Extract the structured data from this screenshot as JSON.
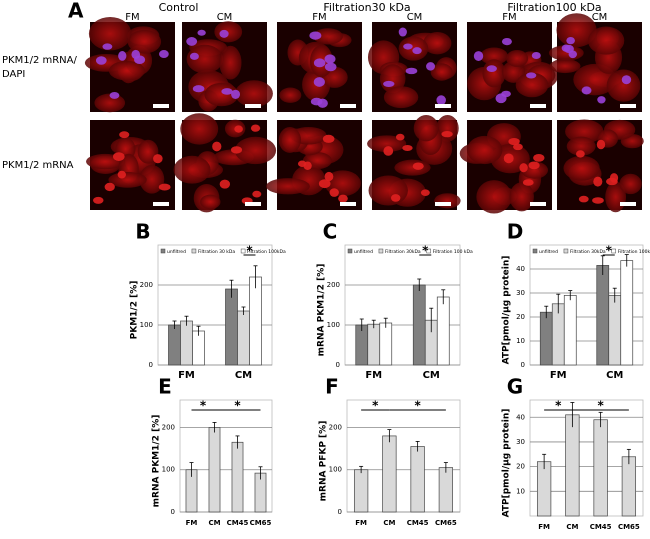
{
  "figure_a": {
    "label": "A",
    "groups": [
      "Control",
      "Filtration30 kDa",
      "Filtration100 kDa"
    ],
    "columns": [
      "FM",
      "CM",
      "FM",
      "CM",
      "FM",
      "CM"
    ],
    "row_labels": [
      [
        "PKM1/2 mRNA/",
        "DAPI"
      ],
      [
        "PKM1/2 mRNA"
      ]
    ]
  },
  "chart_data": [
    {
      "type": "grouped_bar",
      "label": "B",
      "y_label": "PKM1/2 [%]",
      "categories": [
        "FM",
        "CM"
      ],
      "series": [
        {
          "name": "unfiltred",
          "color": "#808080",
          "values": [
            100,
            190
          ],
          "errors": [
            10,
            22
          ]
        },
        {
          "name": "Filtration 30 kDa",
          "color": "#d9d9d9",
          "values": [
            110,
            135
          ],
          "errors": [
            12,
            10
          ]
        },
        {
          "name": "Filtration 100kDa",
          "color": "#ffffff",
          "values": [
            85,
            220
          ],
          "errors": [
            12,
            28
          ]
        }
      ],
      "ylim": [
        0,
        300
      ],
      "yticks": [
        0,
        100,
        200
      ],
      "grid": true,
      "annotations": [
        "*"
      ]
    },
    {
      "type": "grouped_bar",
      "label": "C",
      "y_label": "mRNA PKM1/2 [%]",
      "categories": [
        "FM",
        "CM"
      ],
      "series": [
        {
          "name": "unfiltred",
          "color": "#808080",
          "values": [
            100,
            200
          ],
          "errors": [
            15,
            15
          ]
        },
        {
          "name": "Filtration 30kDa",
          "color": "#d9d9d9",
          "values": [
            102,
            112
          ],
          "errors": [
            10,
            30
          ]
        },
        {
          "name": "Filtration 100 kDa",
          "color": "#ffffff",
          "values": [
            105,
            170
          ],
          "errors": [
            12,
            18
          ]
        }
      ],
      "ylim": [
        0,
        300
      ],
      "yticks": [
        0,
        100,
        200
      ],
      "grid": true,
      "annotations": [
        "*"
      ]
    },
    {
      "type": "grouped_bar",
      "label": "D",
      "y_label": "ATP[pmol/µg protein]",
      "categories": [
        "FM",
        "CM"
      ],
      "series": [
        {
          "name": "unfiltred",
          "color": "#808080",
          "values": [
            22,
            41.5
          ],
          "errors": [
            2.5,
            4
          ]
        },
        {
          "name": "Filtration 30kDa",
          "color": "#d9d9d9",
          "values": [
            25.5,
            29
          ],
          "errors": [
            4,
            3
          ]
        },
        {
          "name": "Filtration 100kDa",
          "color": "#ffffff",
          "values": [
            29,
            43.5
          ],
          "errors": [
            2,
            2.5
          ]
        }
      ],
      "ylim": [
        0,
        50
      ],
      "yticks": [
        0,
        10,
        20,
        30,
        40
      ],
      "grid": true,
      "annotations": [
        "*"
      ]
    },
    {
      "type": "bar",
      "label": "E",
      "y_label": "mRNA PKM1/2 [%]",
      "categories": [
        "FM",
        "CM",
        "CM45",
        "CM65"
      ],
      "values": [
        100,
        200,
        165,
        92
      ],
      "errors": [
        17,
        12,
        15,
        15
      ],
      "color": "#d9d9d9",
      "ylim": [
        0,
        265
      ],
      "yticks": [
        0,
        100,
        200
      ],
      "grid": true,
      "annotations": [
        "*",
        "*"
      ]
    },
    {
      "type": "bar",
      "label": "F",
      "y_label": "mRNA PFKP [%]",
      "categories": [
        "FM",
        "CM",
        "CM45",
        "CM65"
      ],
      "values": [
        100,
        180,
        155,
        105
      ],
      "errors": [
        8,
        15,
        12,
        12
      ],
      "color": "#d9d9d9",
      "ylim": [
        0,
        265
      ],
      "yticks": [
        0,
        100,
        200
      ],
      "grid": true,
      "annotations": [
        "*",
        "*"
      ]
    },
    {
      "type": "bar",
      "label": "G",
      "y_label": "ATP[pmol/µg protein]",
      "categories": [
        "FM",
        "CM",
        "CM45",
        "CM65"
      ],
      "values": [
        22,
        41,
        39,
        24
      ],
      "errors": [
        3,
        5,
        3,
        3
      ],
      "color": "#d9d9d9",
      "ylim": [
        0,
        47
      ],
      "yticks": [
        10,
        20,
        30,
        40
      ],
      "grid": true,
      "annotations": [
        "*",
        "*"
      ]
    }
  ]
}
